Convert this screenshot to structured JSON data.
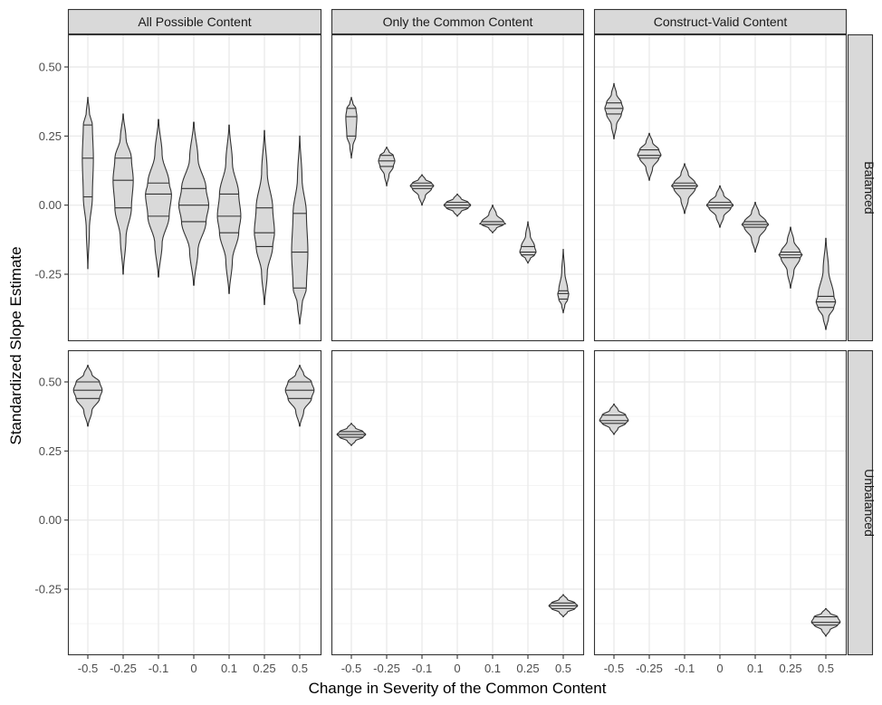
{
  "chart_data": {
    "type": "violin",
    "xlabel": "Change in Severity of the Common Content",
    "ylabel": "Standardized Slope Estimate",
    "categories": [
      "-0.5",
      "-0.25",
      "-0.1",
      "0",
      "0.1",
      "0.25",
      "0.5"
    ],
    "x_values": [
      -0.5,
      -0.25,
      -0.1,
      0,
      0.1,
      0.25,
      0.5
    ],
    "yticks": [
      0.5,
      0.25,
      0.0,
      -0.25
    ],
    "ytick_labels": [
      "0.50",
      "0.25",
      "0.00",
      "-0.25"
    ],
    "ylim": [
      -0.43,
      0.61
    ],
    "grid": true,
    "col_facets": [
      "All Possible Content",
      "Only the Common Content",
      "Construct-Valid Content"
    ],
    "row_facets": [
      "Balanced",
      "Unbalanced"
    ],
    "quantiles_drawn": [
      0.25,
      0.5,
      0.75
    ],
    "panels": [
      {
        "row": "Balanced",
        "col": "All Possible Content",
        "violins": [
          {
            "x": "-0.5",
            "min": -0.23,
            "q1": 0.03,
            "median": 0.17,
            "q3": 0.29,
            "max": 0.39,
            "width": 0.34
          },
          {
            "x": "-0.25",
            "min": -0.25,
            "q1": -0.01,
            "median": 0.09,
            "q3": 0.17,
            "max": 0.33,
            "width": 0.62
          },
          {
            "x": "-0.1",
            "min": -0.26,
            "q1": -0.04,
            "median": 0.04,
            "q3": 0.08,
            "max": 0.31,
            "width": 0.8
          },
          {
            "x": "0",
            "min": -0.29,
            "q1": -0.06,
            "median": 0.0,
            "q3": 0.06,
            "max": 0.3,
            "width": 0.92
          },
          {
            "x": "0.1",
            "min": -0.32,
            "q1": -0.1,
            "median": -0.04,
            "q3": 0.04,
            "max": 0.29,
            "width": 0.72
          },
          {
            "x": "0.25",
            "min": -0.36,
            "q1": -0.15,
            "median": -0.1,
            "q3": -0.01,
            "max": 0.27,
            "width": 0.62
          },
          {
            "x": "0.5",
            "min": -0.43,
            "q1": -0.3,
            "median": -0.17,
            "q3": -0.03,
            "max": 0.25,
            "width": 0.5
          }
        ]
      },
      {
        "row": "Balanced",
        "col": "Only the Common Content",
        "violins": [
          {
            "x": "-0.5",
            "min": 0.17,
            "q1": 0.25,
            "median": 0.32,
            "q3": 0.35,
            "max": 0.39,
            "width": 0.34
          },
          {
            "x": "-0.25",
            "min": 0.07,
            "q1": 0.14,
            "median": 0.16,
            "q3": 0.18,
            "max": 0.21,
            "width": 0.5
          },
          {
            "x": "-0.1",
            "min": 0.0,
            "q1": 0.06,
            "median": 0.07,
            "q3": 0.08,
            "max": 0.11,
            "width": 0.72
          },
          {
            "x": "0",
            "min": -0.04,
            "q1": -0.01,
            "median": 0.0,
            "q3": 0.01,
            "max": 0.04,
            "width": 0.82
          },
          {
            "x": "0.1",
            "min": -0.1,
            "q1": -0.07,
            "median": -0.07,
            "q3": -0.06,
            "max": 0.0,
            "width": 0.82
          },
          {
            "x": "0.25",
            "min": -0.21,
            "q1": -0.18,
            "median": -0.17,
            "q3": -0.15,
            "max": -0.06,
            "width": 0.5
          },
          {
            "x": "0.5",
            "min": -0.39,
            "q1": -0.34,
            "median": -0.32,
            "q3": -0.31,
            "max": -0.16,
            "width": 0.34
          }
        ]
      },
      {
        "row": "Balanced",
        "col": "Construct-Valid Content",
        "violins": [
          {
            "x": "-0.5",
            "min": 0.24,
            "q1": 0.33,
            "median": 0.35,
            "q3": 0.37,
            "max": 0.44,
            "width": 0.56
          },
          {
            "x": "-0.25",
            "min": 0.09,
            "q1": 0.17,
            "median": 0.18,
            "q3": 0.2,
            "max": 0.26,
            "width": 0.72
          },
          {
            "x": "-0.1",
            "min": -0.03,
            "q1": 0.06,
            "median": 0.07,
            "q3": 0.08,
            "max": 0.15,
            "width": 0.8
          },
          {
            "x": "0",
            "min": -0.08,
            "q1": -0.01,
            "median": 0.0,
            "q3": 0.01,
            "max": 0.07,
            "width": 0.82
          },
          {
            "x": "0.1",
            "min": -0.17,
            "q1": -0.08,
            "median": -0.07,
            "q3": -0.06,
            "max": 0.01,
            "width": 0.82
          },
          {
            "x": "0.25",
            "min": -0.3,
            "q1": -0.19,
            "median": -0.18,
            "q3": -0.17,
            "max": -0.08,
            "width": 0.72
          },
          {
            "x": "0.5",
            "min": -0.45,
            "q1": -0.37,
            "median": -0.35,
            "q3": -0.33,
            "max": -0.12,
            "width": 0.6
          }
        ]
      },
      {
        "row": "Unbalanced",
        "col": "All Possible Content",
        "violins": [
          {
            "x": "-0.5",
            "min": 0.34,
            "q1": 0.44,
            "median": 0.47,
            "q3": 0.5,
            "max": 0.56,
            "width": 0.88
          },
          {
            "x": "0.5",
            "min": 0.34,
            "q1": 0.44,
            "median": 0.47,
            "q3": 0.5,
            "max": 0.56,
            "width": 0.88
          }
        ]
      },
      {
        "row": "Unbalanced",
        "col": "Only the Common Content",
        "violins": [
          {
            "x": "-0.5",
            "min": 0.27,
            "q1": 0.3,
            "median": 0.31,
            "q3": 0.32,
            "max": 0.35,
            "width": 0.88
          },
          {
            "x": "0.5",
            "min": -0.35,
            "q1": -0.32,
            "median": -0.31,
            "q3": -0.3,
            "max": -0.27,
            "width": 0.88
          }
        ]
      },
      {
        "row": "Unbalanced",
        "col": "Construct-Valid Content",
        "violins": [
          {
            "x": "-0.5",
            "min": 0.31,
            "q1": 0.35,
            "median": 0.36,
            "q3": 0.38,
            "max": 0.42,
            "width": 0.88
          },
          {
            "x": "0.5",
            "min": -0.42,
            "q1": -0.38,
            "median": -0.37,
            "q3": -0.35,
            "max": -0.32,
            "width": 0.88
          }
        ]
      }
    ]
  },
  "colors": {
    "violin_fill": "#d9d9d9",
    "violin_stroke": "#333333",
    "strip_fill": "#d9d9d9",
    "strip_border": "#333333",
    "panel_border": "#333333",
    "grid_major": "#ebebeb",
    "grid_minor": "#f4f4f4",
    "tick_text": "#4d4d4d"
  }
}
